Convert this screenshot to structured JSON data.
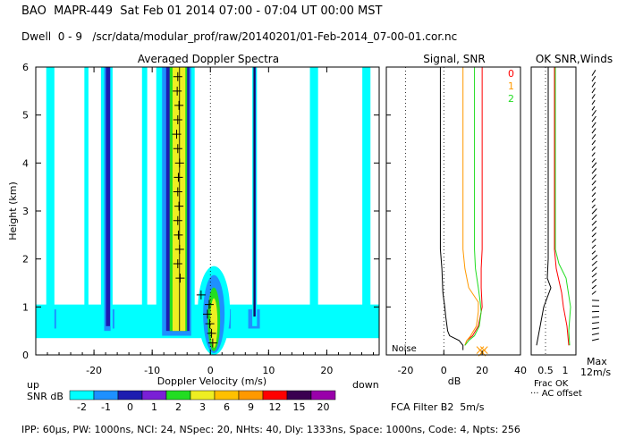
{
  "header": {
    "line1": "BAO  MAPR-449  Sat Feb 01 2014 07:00 - 07:04 UT 00:00 MST",
    "line2": "Dwell  0 - 9   /scr/data/modular_prof/raw/20140201/01-Feb-2014_07-00-01.cor.nc"
  },
  "footer": {
    "params": "IPP: 60µs, PW: 1000ns, NCI: 24, NSpec: 20, NHts: 40, Dly: 1333ns, Space: 1000ns, Code: 4, Npts: 256",
    "filter": "FCA Filter B2  5m/s"
  },
  "colors": {
    "cyan": "#00ffff",
    "blue": "#1e90ff",
    "navy": "#1c1cb0",
    "purple": "#7a1fd6",
    "green": "#22dd22",
    "yellow": "#eeee22",
    "red": "#ff0000",
    "orange": "#ff9900"
  },
  "chart_data": [
    {
      "type": "heatmap",
      "title": "Averaged Doppler Spectra",
      "xlabel": "Doppler Velocity (m/s)",
      "ylabel": "Height (km)",
      "xlim": [
        -30,
        29
      ],
      "ylim": [
        0,
        6
      ],
      "xticks": [
        -20,
        -10,
        0,
        10,
        20
      ],
      "yticks": [
        0,
        1,
        2,
        3,
        4,
        5,
        6
      ],
      "left_label": "up",
      "right_label": "down",
      "colorbar": {
        "label": "SNR dB",
        "levels": [
          "-2",
          "-1",
          "0",
          "1",
          "2",
          "3",
          "6",
          "9",
          "12",
          "15",
          "20"
        ],
        "colors": [
          "#00ffff",
          "#1e90ff",
          "#1c1cb0",
          "#7a1fd6",
          "#22dd22",
          "#eeee22",
          "#ffc000",
          "#ff9900",
          "#ff0000",
          "#3a0050",
          "#9900aa"
        ]
      },
      "bands": [
        {
          "v": -27.5,
          "w": 1.4,
          "h0": 0.4,
          "h1": 6,
          "c": "#00ffff"
        },
        {
          "v": -21.3,
          "w": 0.7,
          "h0": 0.4,
          "h1": 6,
          "c": "#00ffff"
        },
        {
          "v": -17.8,
          "w": 2.0,
          "h0": 0.4,
          "h1": 6,
          "c": "#00ffff"
        },
        {
          "v": -17.7,
          "w": 1.1,
          "h0": 0.5,
          "h1": 6,
          "c": "#1e90ff"
        },
        {
          "v": -17.6,
          "w": 0.7,
          "h0": 0.6,
          "h1": 6,
          "c": "#1c1cb0"
        },
        {
          "v": -11.3,
          "w": 0.9,
          "h0": 0.6,
          "h1": 6,
          "c": "#00ffff"
        },
        {
          "v": -6.0,
          "w": 6.6,
          "h0": 0.4,
          "h1": 6,
          "c": "#00ffff"
        },
        {
          "v": -5.8,
          "w": 5.0,
          "h0": 0.4,
          "h1": 6,
          "c": "#1e90ff"
        },
        {
          "v": -5.6,
          "w": 4.0,
          "h0": 0.5,
          "h1": 6,
          "c": "#1c1cb0"
        },
        {
          "v": -5.5,
          "w": 3.0,
          "h0": 0.5,
          "h1": 6,
          "c": "#22dd22"
        },
        {
          "v": -5.4,
          "w": 2.2,
          "h0": 0.5,
          "h1": 6,
          "c": "#eeee22"
        },
        {
          "v": 7.6,
          "w": 0.8,
          "h0": 0.6,
          "h1": 6,
          "c": "#00ffff"
        },
        {
          "v": 7.6,
          "w": 0.4,
          "h0": 0.8,
          "h1": 6,
          "c": "#1c1cb0"
        },
        {
          "v": 17.8,
          "w": 1.4,
          "h0": 0.6,
          "h1": 6,
          "c": "#00ffff"
        },
        {
          "v": 26.8,
          "w": 1.4,
          "h0": 0.6,
          "h1": 6,
          "c": "#00ffff"
        }
      ],
      "lower_layer": {
        "h0": 0.35,
        "h1": 1.05
      },
      "peak_blob": {
        "v": 0.6,
        "h0": 0.15,
        "h1": 2.0
      },
      "crosses": [
        {
          "v": -5.6,
          "h": 5.8
        },
        {
          "v": -5.7,
          "h": 5.5
        },
        {
          "v": -5.4,
          "h": 5.2
        },
        {
          "v": -5.6,
          "h": 4.9
        },
        {
          "v": -5.8,
          "h": 4.6
        },
        {
          "v": -5.6,
          "h": 4.3
        },
        {
          "v": -5.3,
          "h": 4.0
        },
        {
          "v": -5.5,
          "h": 3.7
        },
        {
          "v": -5.6,
          "h": 3.4
        },
        {
          "v": -5.4,
          "h": 3.1
        },
        {
          "v": -5.6,
          "h": 2.8
        },
        {
          "v": -5.5,
          "h": 2.5
        },
        {
          "v": -5.3,
          "h": 2.2
        },
        {
          "v": -5.6,
          "h": 1.9
        },
        {
          "v": -5.2,
          "h": 1.6
        },
        {
          "v": -1.6,
          "h": 1.25
        },
        {
          "v": -0.2,
          "h": 1.05
        },
        {
          "v": -0.5,
          "h": 0.85
        },
        {
          "v": -0.1,
          "h": 0.65
        },
        {
          "v": 0.2,
          "h": 0.45
        },
        {
          "v": 0.4,
          "h": 0.25
        }
      ]
    },
    {
      "type": "line",
      "title": "Signal, SNR",
      "xlabel": "dB",
      "xlim": [
        -30,
        40
      ],
      "ylim": [
        0,
        6
      ],
      "xticks": [
        -20,
        0,
        20,
        40
      ],
      "noise_label": "Noise",
      "legend": [
        "0",
        "1",
        "2"
      ],
      "legend_colors": [
        "#ff0000",
        "#ff9900",
        "#22dd22"
      ],
      "series": [
        {
          "name": "signal",
          "color": "#000000",
          "x": [
            -1.8,
            -1.8,
            -1.0,
            -0.5,
            0.5,
            1,
            2,
            3,
            8,
            10,
            10,
            10
          ],
          "y": [
            6,
            2.2,
            1.8,
            1.3,
            1.0,
            0.8,
            0.5,
            0.4,
            0.3,
            0.2,
            0.15,
            0.1
          ]
        },
        {
          "name": "0",
          "color": "#ff0000",
          "x": [
            20,
            20,
            19.5,
            19.5,
            20,
            19,
            18,
            15,
            12,
            11
          ],
          "y": [
            6,
            2.2,
            1.8,
            1.4,
            1.0,
            0.8,
            0.6,
            0.4,
            0.3,
            0.2
          ]
        },
        {
          "name": "1",
          "color": "#ff9900",
          "x": [
            10,
            10,
            11,
            13,
            18,
            18,
            17,
            14,
            12,
            11
          ],
          "y": [
            6,
            2.2,
            1.8,
            1.4,
            1.1,
            0.9,
            0.6,
            0.4,
            0.3,
            0.2
          ]
        },
        {
          "name": "2",
          "color": "#22dd22",
          "x": [
            16,
            16,
            16.5,
            18,
            19,
            19.5,
            18.5,
            16,
            13,
            11
          ],
          "y": [
            6,
            2.2,
            1.8,
            1.4,
            1.1,
            0.9,
            0.6,
            0.4,
            0.3,
            0.2
          ]
        }
      ]
    },
    {
      "type": "line",
      "title": "OK  SNR,Winds",
      "xlabel": "Frac OK",
      "note": "··· AC offset",
      "xticks_labels": [
        "0.5",
        "1"
      ],
      "wind_scale": "Max",
      "wind_max": "12m/s"
    }
  ]
}
